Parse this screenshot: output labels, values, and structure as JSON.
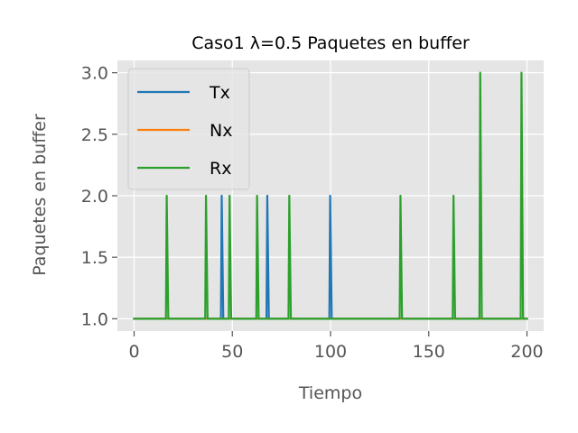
{
  "chart_data": {
    "type": "line",
    "title": "Caso1 λ=0.5 Paquetes en buffer",
    "xlabel": "Tiempo",
    "ylabel": "Paquetes en buffer",
    "xlim": [
      -8.5,
      208.5
    ],
    "ylim": [
      0.9,
      3.1
    ],
    "xticks": [
      0,
      50,
      100,
      150,
      200
    ],
    "xtick_labels": [
      "0",
      "50",
      "100",
      "150",
      "200"
    ],
    "yticks": [
      1.0,
      1.5,
      2.0,
      2.5,
      3.0
    ],
    "ytick_labels": [
      "1.0",
      "1.5",
      "2.0",
      "2.5",
      "3.0"
    ],
    "grid": true,
    "legend_position": "upper left",
    "background_color": "#e5e5e5",
    "series": [
      {
        "name": "Tx",
        "color": "#1f77b4",
        "x": [
          0,
          44.2,
          44.6,
          45.4,
          67.4,
          67.8,
          68.6,
          99.4,
          99.8,
          100.6,
          200
        ],
        "y": [
          1,
          1,
          2,
          1,
          1,
          2,
          1,
          1,
          2,
          1,
          1
        ]
      },
      {
        "name": "Nx",
        "color": "#ff7f0e",
        "x": [
          0,
          200
        ],
        "y": [
          1,
          1
        ]
      },
      {
        "name": "Rx",
        "color": "#2ca02c",
        "x": [
          0,
          16.2,
          16.6,
          17.4,
          36.2,
          36.6,
          37.4,
          48.2,
          48.6,
          49.4,
          62.2,
          62.6,
          63.4,
          78.6,
          79.0,
          79.8,
          135.2,
          135.6,
          136.4,
          162.2,
          162.6,
          163.4,
          175.8,
          176.2,
          177.0,
          196.8,
          197.2,
          198.0,
          200
        ],
        "y": [
          1,
          1,
          2,
          1,
          1,
          2,
          1,
          1,
          2,
          1,
          1,
          2,
          1,
          1,
          2,
          1,
          1,
          2,
          1,
          1,
          2,
          1,
          1,
          3,
          1,
          1,
          3,
          1,
          1
        ]
      }
    ]
  }
}
